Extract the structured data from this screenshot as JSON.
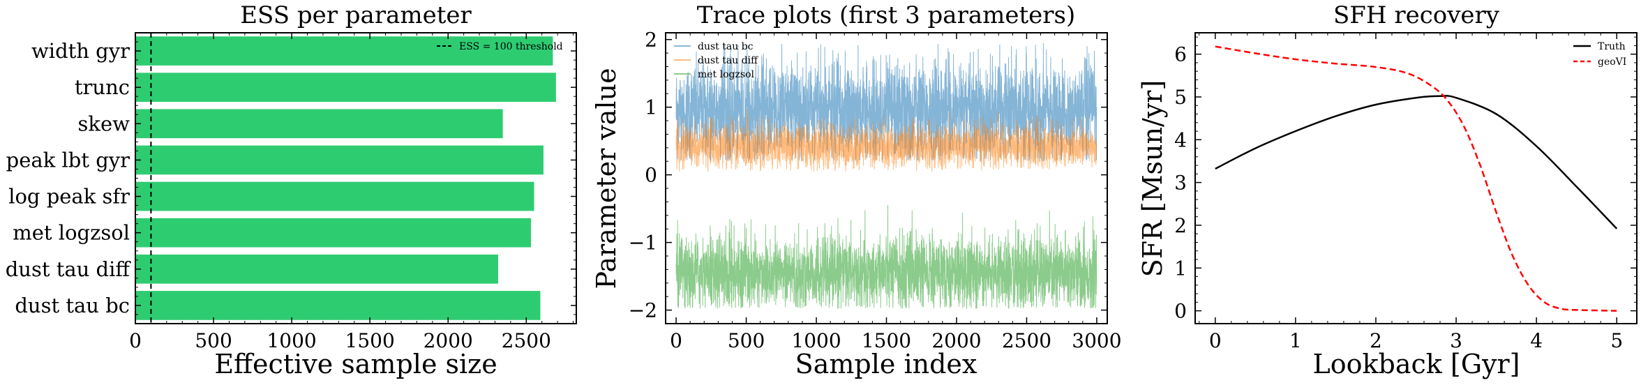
{
  "chart_data": [
    {
      "type": "bar",
      "orientation": "horizontal",
      "title": "ESS per parameter",
      "xlabel": "Effective sample size",
      "ylabel": "",
      "categories": [
        "width gyr",
        "trunc",
        "skew",
        "peak lbt gyr",
        "log peak sfr",
        "met logzsol",
        "dust tau diff",
        "dust tau bc"
      ],
      "values": [
        2670,
        2690,
        2350,
        2610,
        2550,
        2530,
        2320,
        2590
      ],
      "xlim": [
        0,
        2820
      ],
      "xticks": [
        0,
        500,
        1000,
        1500,
        2000,
        2500
      ],
      "bar_color": "#2ecc71",
      "reference_line": {
        "x": 100,
        "label": "ESS = 100 threshold",
        "style": "dashed"
      },
      "legend_position": "top-right"
    },
    {
      "type": "line",
      "title": "Trace plots (first 3 parameters)",
      "xlabel": "Sample index",
      "ylabel": "Parameter value",
      "xlim": [
        -75,
        3075
      ],
      "ylim": [
        -2.2,
        2.1
      ],
      "xticks": [
        0,
        500,
        1000,
        1500,
        2000,
        2500,
        3000
      ],
      "yticks": [
        -2,
        -1,
        0,
        1,
        2
      ],
      "n_samples": 3000,
      "series": [
        {
          "name": "dust tau bc",
          "color": "#1f77b4",
          "mean": 0.95,
          "spread": 0.35,
          "min": 0.2,
          "max": 1.95
        },
        {
          "name": "dust tau diff",
          "color": "#ff7f0e",
          "mean": 0.42,
          "spread": 0.16,
          "min": 0.05,
          "max": 1.0
        },
        {
          "name": "met logzsol",
          "color": "#2ca02c",
          "mean": -1.45,
          "spread": 0.28,
          "min": -1.98,
          "max": -0.25
        }
      ],
      "alpha": 0.55,
      "legend_position": "top-left"
    },
    {
      "type": "line",
      "title": "SFH recovery",
      "xlabel": "Lookback [Gyr]",
      "ylabel": "SFR [Msun/yr]",
      "xlim": [
        -0.25,
        5.25
      ],
      "ylim": [
        -0.3,
        6.5
      ],
      "xticks": [
        0,
        1,
        2,
        3,
        4,
        5
      ],
      "yticks": [
        0,
        1,
        2,
        3,
        4,
        5,
        6
      ],
      "series": [
        {
          "name": "Truth",
          "color": "#000000",
          "style": "solid",
          "x": [
            0,
            0.5,
            1,
            1.5,
            2,
            2.5,
            2.8,
            3,
            3.5,
            4,
            4.5,
            5
          ],
          "y": [
            3.32,
            3.8,
            4.2,
            4.55,
            4.82,
            4.98,
            5.02,
            4.98,
            4.6,
            3.85,
            2.9,
            1.92
          ]
        },
        {
          "name": "geoVI",
          "color": "#ff0000",
          "style": "dashed",
          "x": [
            0,
            0.5,
            1,
            1.5,
            2,
            2.4,
            2.7,
            2.9,
            3.1,
            3.3,
            3.5,
            3.7,
            3.9,
            4.1,
            4.3,
            4.5,
            5
          ],
          "y": [
            6.18,
            6.02,
            5.88,
            5.78,
            5.7,
            5.55,
            5.25,
            4.9,
            4.3,
            3.4,
            2.3,
            1.3,
            0.6,
            0.2,
            0.05,
            0.02,
            0.0
          ]
        }
      ],
      "legend_position": "top-right"
    }
  ]
}
